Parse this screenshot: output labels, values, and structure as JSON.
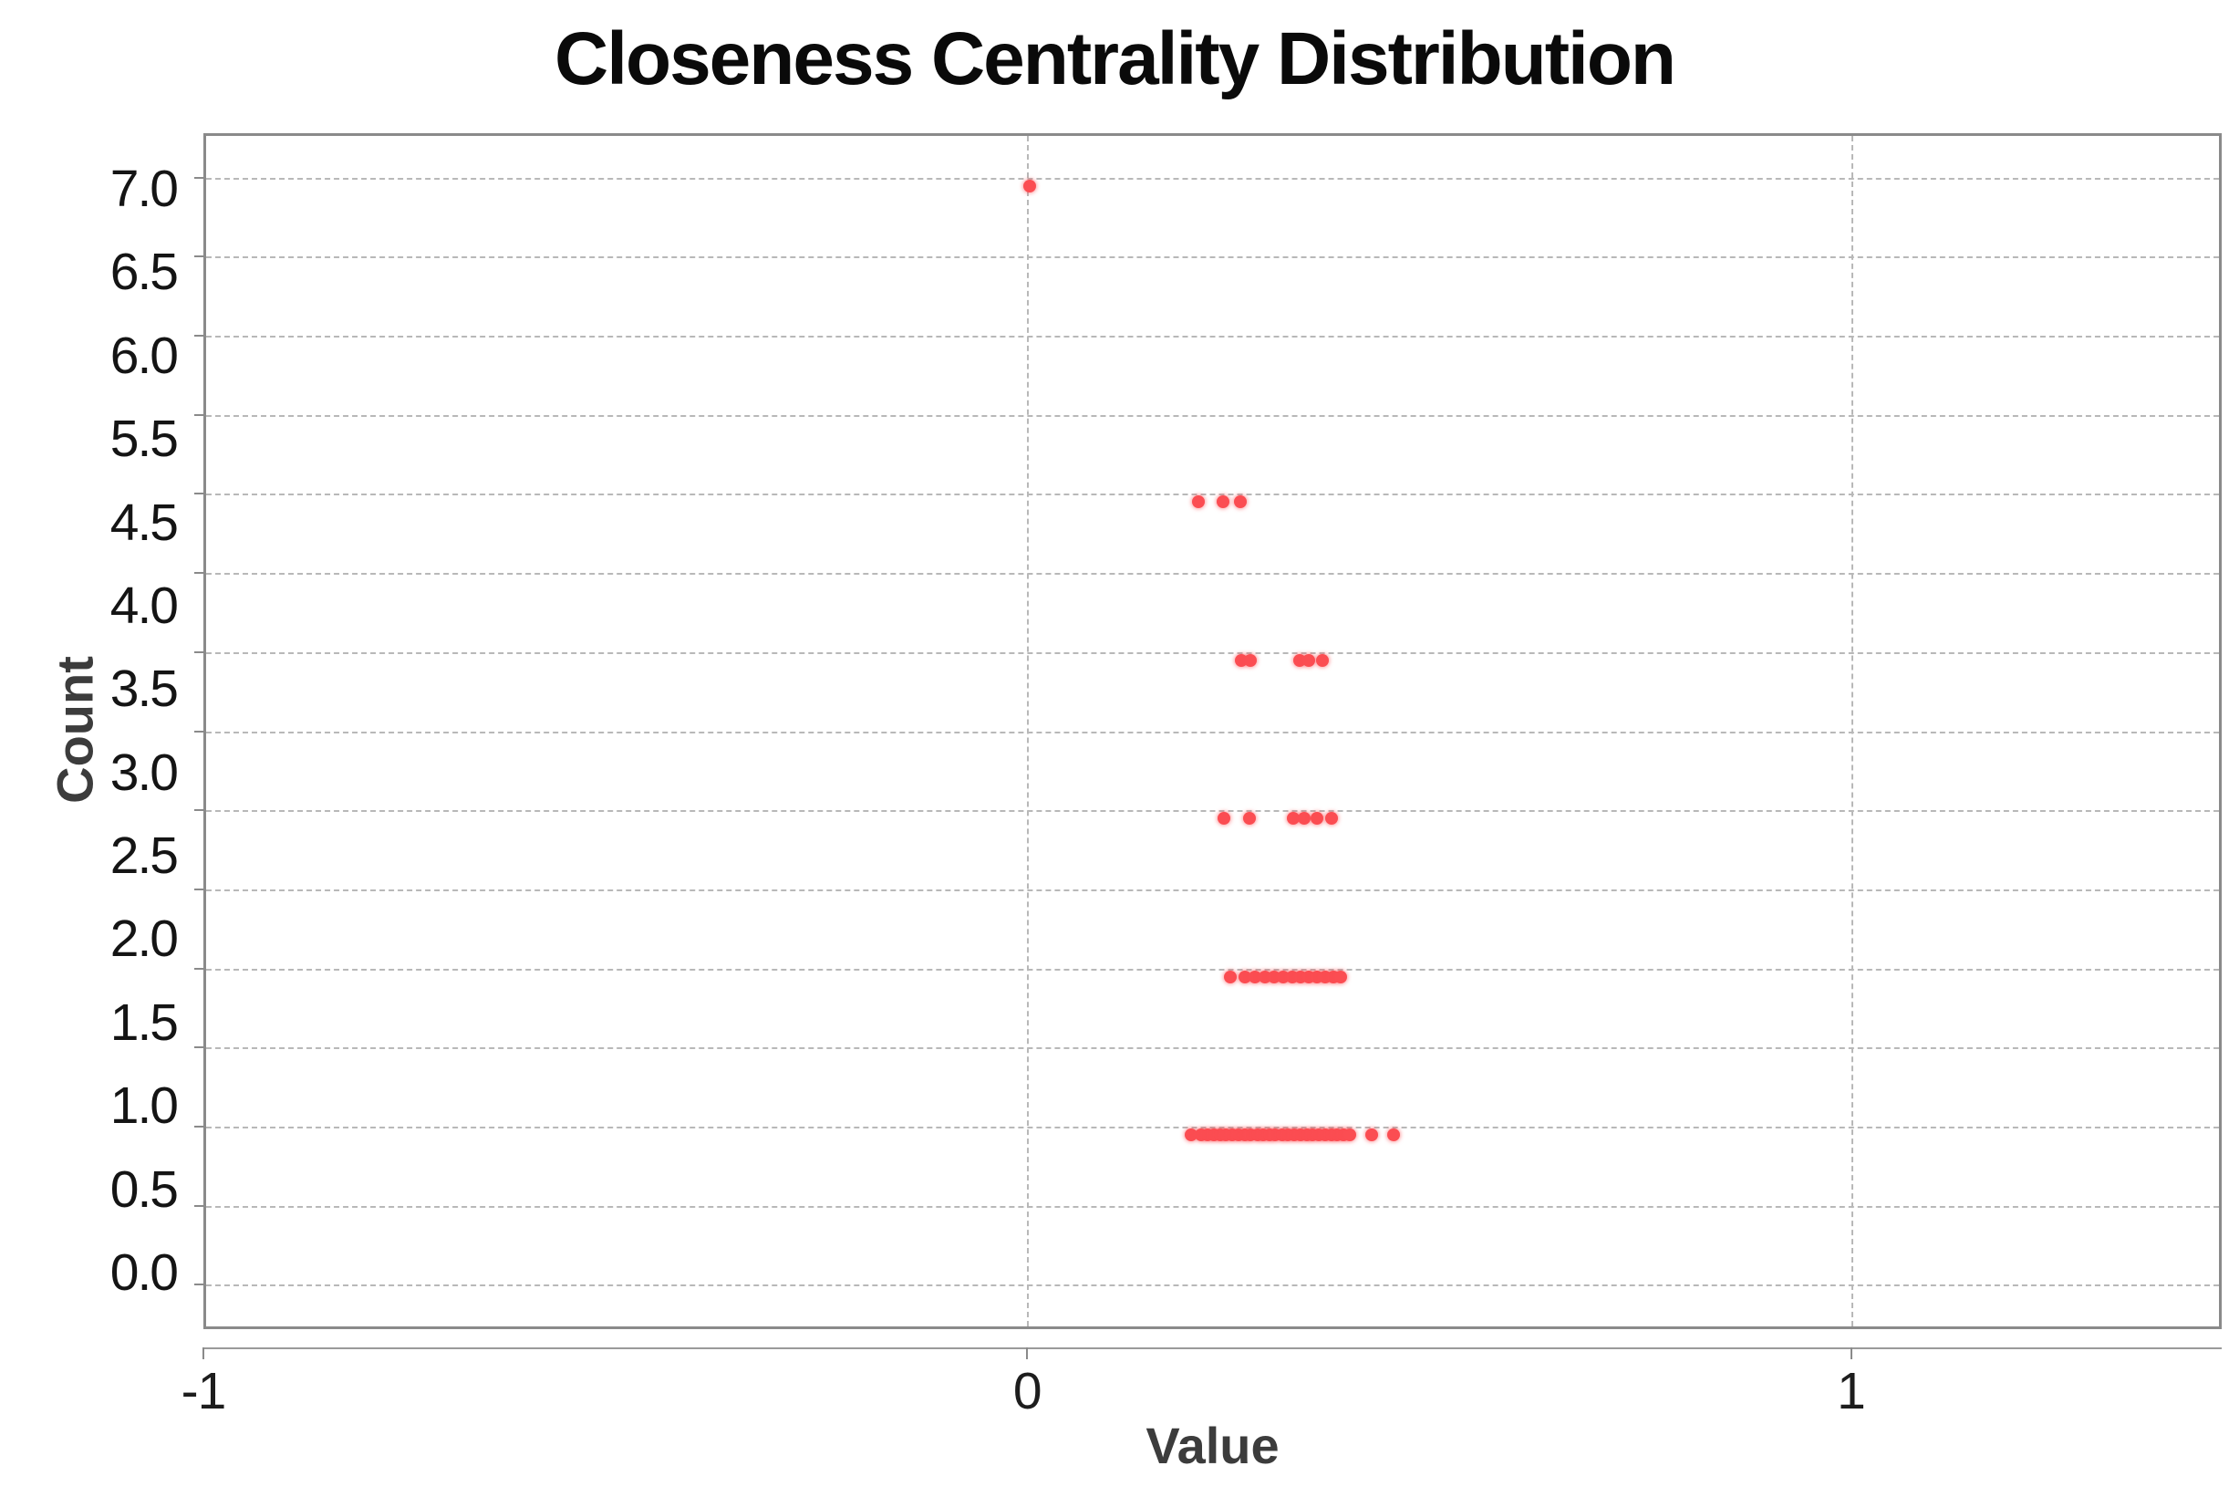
{
  "title": "Closeness Centrality Distribution",
  "colors": {
    "point": "#fb4d52",
    "grid": "#b8b8b8",
    "plot_border": "#8a8a8a",
    "title_text": "#0a0a0a",
    "axis_label_text": "#3c3c3c",
    "tick_text": "#141414"
  },
  "chart_data": {
    "type": "scatter",
    "title": "Closeness Centrality Distribution",
    "xlabel": "Value",
    "ylabel": "Count",
    "xlim": [
      -1.0,
      1.45
    ],
    "ylim": [
      -0.28,
      7.28
    ],
    "grid": "dashed",
    "legend": "none",
    "x_tick_labels": [
      "-1",
      "0",
      "1"
    ],
    "x_tick_values": [
      -1,
      0,
      1
    ],
    "y_tick_labels": [
      "7.0",
      "6.5",
      "6.0",
      "5.5",
      "4.5",
      "4.0",
      "3.5",
      "3.0",
      "2.5",
      "2.0",
      "1.5",
      "1.0",
      "0.5",
      "0.0"
    ],
    "y_gridline_values": [
      7.0,
      6.5,
      6.0,
      5.5,
      5.0,
      4.5,
      4.0,
      3.5,
      3.0,
      2.5,
      2.0,
      1.5,
      1.0,
      0.5,
      0.0
    ],
    "x_gridline_values": [
      0,
      1
    ],
    "point_color": "#fb4d52",
    "series": [
      {
        "count": 7,
        "x": [
          0.0
        ]
      },
      {
        "count": 5,
        "x": [
          0.205,
          0.234,
          0.255
        ]
      },
      {
        "count": 4,
        "x": [
          0.256,
          0.268,
          0.327,
          0.339,
          0.355
        ]
      },
      {
        "count": 3,
        "x": [
          0.235,
          0.267,
          0.32,
          0.333,
          0.348,
          0.366
        ]
      },
      {
        "count": 2,
        "x": [
          0.243,
          0.261,
          0.273,
          0.285,
          0.296,
          0.308,
          0.318,
          0.328,
          0.338,
          0.348,
          0.358,
          0.368,
          0.377
        ]
      },
      {
        "count": 1,
        "x": [
          0.196,
          0.208,
          0.216,
          0.223,
          0.231,
          0.238,
          0.246,
          0.253,
          0.261,
          0.268,
          0.276,
          0.283,
          0.291,
          0.298,
          0.306,
          0.313,
          0.321,
          0.328,
          0.336,
          0.343,
          0.351,
          0.358,
          0.366,
          0.373,
          0.381,
          0.388,
          0.415,
          0.441
        ]
      }
    ]
  }
}
